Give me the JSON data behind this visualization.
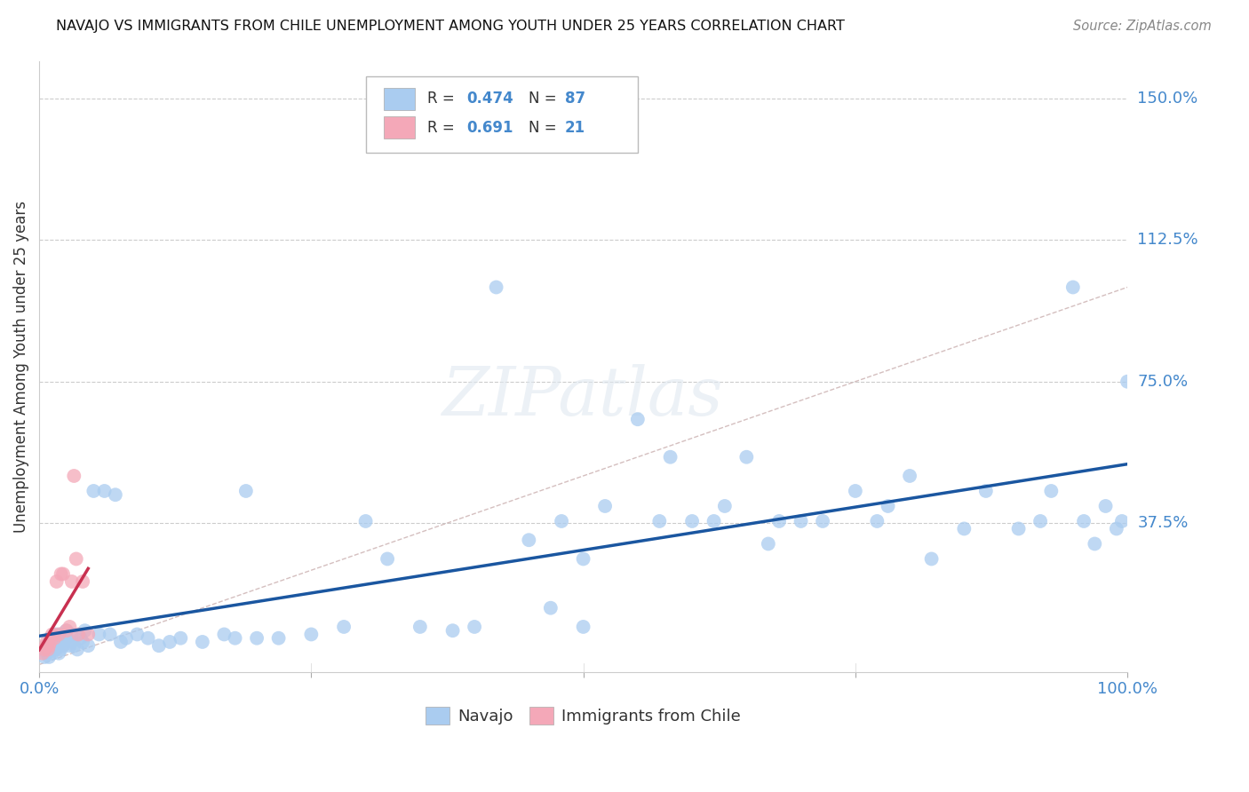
{
  "title": "NAVAJO VS IMMIGRANTS FROM CHILE UNEMPLOYMENT AMONG YOUTH UNDER 25 YEARS CORRELATION CHART",
  "source": "Source: ZipAtlas.com",
  "ylabel": "Unemployment Among Youth under 25 years",
  "navajo_R": 0.474,
  "navajo_N": 87,
  "chile_R": 0.691,
  "chile_N": 21,
  "navajo_color": "#aaccf0",
  "chile_color": "#f4a8b8",
  "navajo_line_color": "#1a56a0",
  "chile_line_color": "#c83050",
  "diag_color": "#d0b8b8",
  "legend_navajo": "Navajo",
  "legend_chile": "Immigrants from Chile",
  "xlim": [
    0,
    1.0
  ],
  "ylim": [
    -0.02,
    1.6
  ],
  "xticks": [
    0.0,
    0.25,
    0.5,
    0.75,
    1.0
  ],
  "xticklabels": [
    "0.0%",
    "",
    "",
    "",
    "100.0%"
  ],
  "ytick_positions": [
    0.375,
    0.75,
    1.125,
    1.5
  ],
  "yticklabels": [
    "37.5%",
    "75.0%",
    "112.5%",
    "150.0%"
  ],
  "navajo_x": [
    0.005,
    0.007,
    0.008,
    0.009,
    0.01,
    0.01,
    0.012,
    0.013,
    0.015,
    0.015,
    0.016,
    0.018,
    0.02,
    0.02,
    0.02,
    0.022,
    0.025,
    0.025,
    0.028,
    0.03,
    0.03,
    0.032,
    0.035,
    0.038,
    0.04,
    0.042,
    0.045,
    0.05,
    0.055,
    0.06,
    0.065,
    0.07,
    0.075,
    0.08,
    0.09,
    0.1,
    0.11,
    0.12,
    0.13,
    0.15,
    0.17,
    0.18,
    0.19,
    0.2,
    0.22,
    0.25,
    0.28,
    0.3,
    0.32,
    0.35,
    0.38,
    0.4,
    0.42,
    0.45,
    0.47,
    0.48,
    0.5,
    0.5,
    0.52,
    0.55,
    0.57,
    0.58,
    0.6,
    0.62,
    0.63,
    0.65,
    0.67,
    0.68,
    0.7,
    0.72,
    0.75,
    0.77,
    0.78,
    0.8,
    0.82,
    0.85,
    0.87,
    0.9,
    0.92,
    0.93,
    0.95,
    0.96,
    0.97,
    0.98,
    0.99,
    0.995,
    1.0
  ],
  "navajo_y": [
    0.02,
    0.03,
    0.04,
    0.02,
    0.05,
    0.07,
    0.03,
    0.06,
    0.04,
    0.08,
    0.05,
    0.03,
    0.06,
    0.08,
    0.04,
    0.05,
    0.07,
    0.09,
    0.05,
    0.06,
    0.08,
    0.05,
    0.04,
    0.07,
    0.06,
    0.09,
    0.05,
    0.46,
    0.08,
    0.46,
    0.08,
    0.45,
    0.06,
    0.07,
    0.08,
    0.07,
    0.05,
    0.06,
    0.07,
    0.06,
    0.08,
    0.07,
    0.46,
    0.07,
    0.07,
    0.08,
    0.1,
    0.38,
    0.28,
    0.1,
    0.09,
    0.1,
    1.0,
    0.33,
    0.15,
    0.38,
    0.1,
    0.28,
    0.42,
    0.65,
    0.38,
    0.55,
    0.38,
    0.38,
    0.42,
    0.55,
    0.32,
    0.38,
    0.38,
    0.38,
    0.46,
    0.38,
    0.42,
    0.5,
    0.28,
    0.36,
    0.46,
    0.36,
    0.38,
    0.46,
    1.0,
    0.38,
    0.32,
    0.42,
    0.36,
    0.38,
    0.75
  ],
  "chile_x": [
    0.003,
    0.005,
    0.006,
    0.007,
    0.008,
    0.009,
    0.01,
    0.012,
    0.014,
    0.016,
    0.018,
    0.02,
    0.022,
    0.025,
    0.028,
    0.03,
    0.032,
    0.034,
    0.036,
    0.04,
    0.045
  ],
  "chile_y": [
    0.03,
    0.04,
    0.05,
    0.06,
    0.04,
    0.05,
    0.06,
    0.08,
    0.07,
    0.22,
    0.08,
    0.24,
    0.24,
    0.09,
    0.1,
    0.22,
    0.5,
    0.28,
    0.08,
    0.22,
    0.08
  ]
}
